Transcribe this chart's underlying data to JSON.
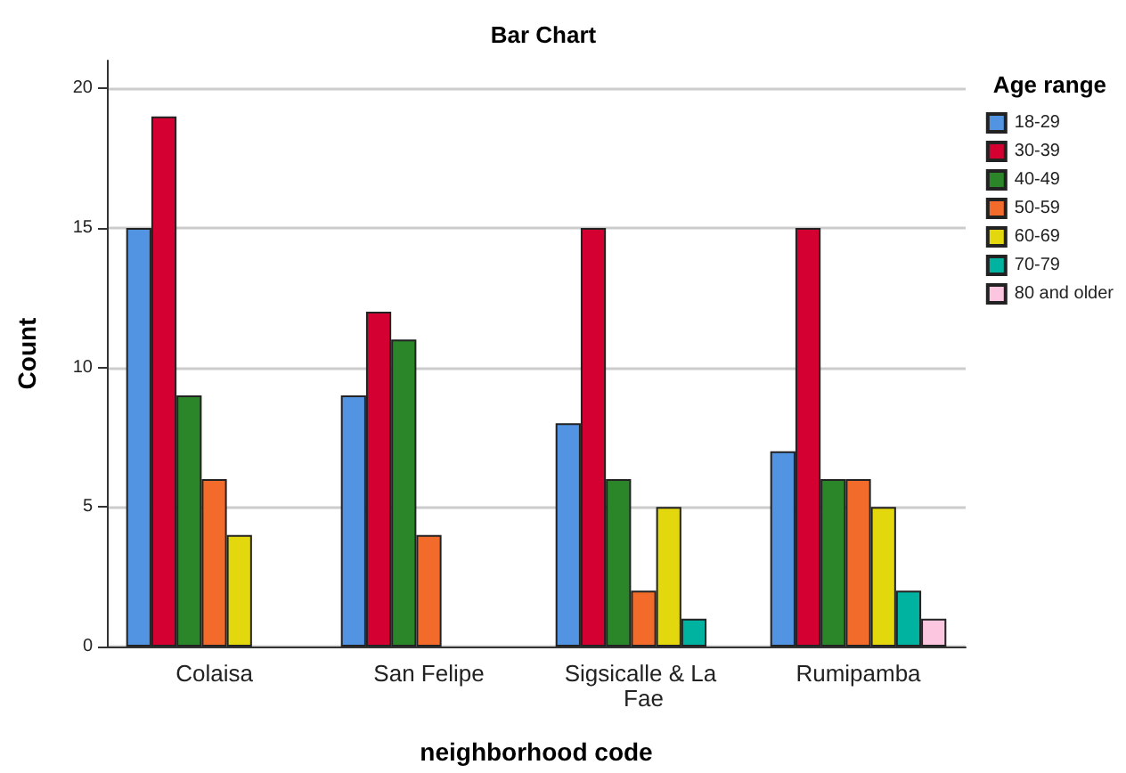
{
  "chart_data": {
    "type": "bar",
    "title": "Bar Chart",
    "xlabel": "neighborhood code",
    "ylabel": "Count",
    "legend_title": "Age range",
    "categories": [
      "Colaisa",
      "San Felipe",
      "Sigsicalle & La Fae",
      "Rumipamba"
    ],
    "series": [
      {
        "name": "18-29",
        "color": "#5294e2",
        "values": [
          15,
          9,
          8,
          7
        ]
      },
      {
        "name": "30-39",
        "color": "#d50032",
        "values": [
          19,
          12,
          15,
          15
        ]
      },
      {
        "name": "40-49",
        "color": "#2b8529",
        "values": [
          9,
          11,
          6,
          6
        ]
      },
      {
        "name": "50-59",
        "color": "#f26b2a",
        "values": [
          6,
          4,
          2,
          6
        ]
      },
      {
        "name": "60-69",
        "color": "#e3d70e",
        "values": [
          4,
          null,
          5,
          5
        ]
      },
      {
        "name": "70-79",
        "color": "#00b3a0",
        "values": [
          null,
          null,
          1,
          2
        ]
      },
      {
        "name": "80 and older",
        "color": "#fdc6e0",
        "values": [
          null,
          null,
          null,
          1
        ]
      }
    ],
    "ylim": [
      0,
      21
    ],
    "yticks": [
      0,
      5,
      10,
      15,
      20
    ],
    "grid": "y",
    "legend": "right"
  }
}
